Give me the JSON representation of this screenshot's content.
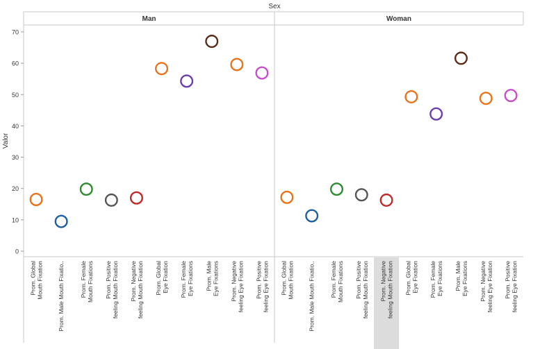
{
  "chart_data": {
    "type": "scatter",
    "title": "Sex",
    "ylabel": "Valor",
    "xlabel": "",
    "ylim": [
      0,
      72
    ],
    "yticks": [
      0,
      10,
      20,
      30,
      40,
      50,
      60,
      70
    ],
    "grid": false,
    "categories": [
      "Prom. Global Mouth Fixation",
      "Prom. Male Mouth Fixatio..",
      "Prom. Female Mouth Fixations",
      "Prom. Positive feeling Mouth Fixation",
      "Prom. Negative feeling Mouth Fixation",
      "Prom. Global Eye Fixation",
      "Prom. Female Eye Fixations",
      "Prom. Male Eye Fixations",
      "Prom. Negative feeling Eye Fixation",
      "Prom. Positive feeling Eye Fixation"
    ],
    "category_colors": [
      "#e8731a",
      "#1f5fa0",
      "#2e8b2e",
      "#555555",
      "#c0282a",
      "#e8731a",
      "#6a3fb0",
      "#5a2a1a",
      "#e8731a",
      "#c94fc9"
    ],
    "panels": [
      {
        "name": "Man",
        "values": [
          16.5,
          9.5,
          19.8,
          16.3,
          17.0,
          58.3,
          54.3,
          67.0,
          59.6,
          56.9
        ]
      },
      {
        "name": "Woman",
        "values": [
          17.2,
          11.3,
          19.8,
          18.0,
          16.3,
          49.3,
          43.8,
          61.6,
          48.8,
          49.7
        ]
      }
    ],
    "highlighted": {
      "panel": 1,
      "category": 4
    }
  }
}
